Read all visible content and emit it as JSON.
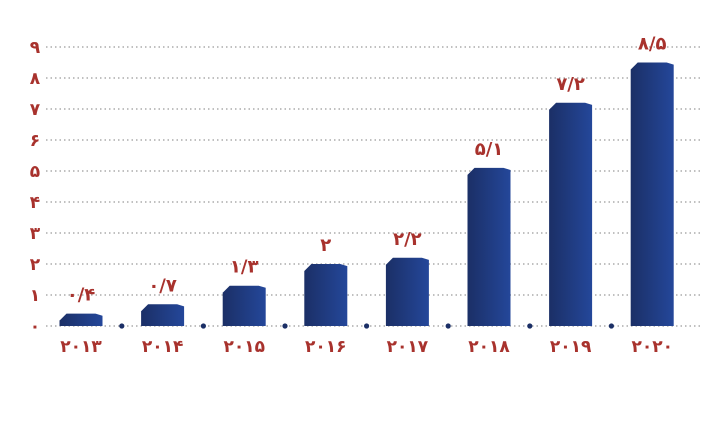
{
  "chart_data": {
    "type": "bar",
    "title": "",
    "xlabel": "",
    "ylabel": "",
    "categories": [
      "۲۰۱۳",
      "۲۰۱۴",
      "۲۰۱۵",
      "۲۰۱۶",
      "۲۰۱۷",
      "۲۰۱۸",
      "۲۰۱۹",
      "۲۰۲۰"
    ],
    "values": [
      0.4,
      0.7,
      1.3,
      2,
      2.2,
      5.1,
      7.2,
      8.5
    ],
    "value_labels": [
      "۰/۴",
      "۰/۷",
      "۱/۳",
      "۲",
      "۲/۲",
      "۵/۱",
      "۷/۲",
      "۸/۵"
    ],
    "ylim": [
      0,
      9
    ],
    "yticks": [
      0,
      1,
      2,
      3,
      4,
      5,
      6,
      7,
      8,
      9
    ],
    "ytick_labels": [
      "۰",
      "۱",
      "۲",
      "۳",
      "۴",
      "۵",
      "۶",
      "۷",
      "۸",
      "۹"
    ],
    "grid": true,
    "legend": "none",
    "colors": {
      "bar_dark": "#1b2f66",
      "bar_light": "#24479a",
      "label": "#a8322d",
      "grid": "#9a9a9a",
      "separator_dot": "#1b2f66"
    }
  }
}
